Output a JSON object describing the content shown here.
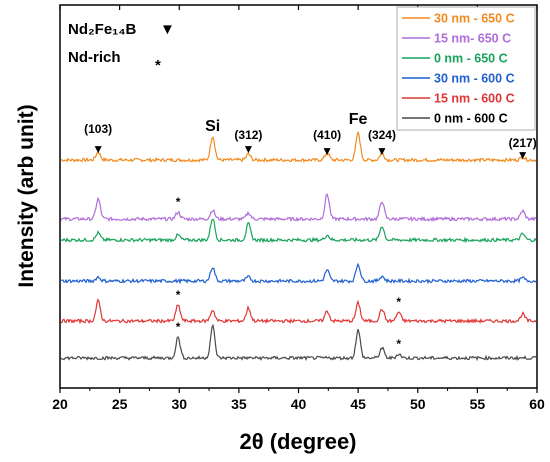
{
  "chart_data": {
    "type": "line",
    "xlabel": "2θ (degree)",
    "ylabel": "Intensity (arb unit)",
    "xlim": [
      20,
      60
    ],
    "xticks": [
      20,
      25,
      30,
      35,
      40,
      45,
      50,
      55,
      60
    ],
    "legend_placement": "top-right",
    "phase_key": [
      {
        "label": "Nd₂Fe₁₄B",
        "symbol": "▼"
      },
      {
        "label": "Nd-rich",
        "symbol": "*"
      }
    ],
    "series": [
      {
        "name": "30 nm - 650 C",
        "color": "#F28A1F",
        "peaks": [
          [
            23.2,
            8
          ],
          [
            32.8,
            24
          ],
          [
            35.8,
            6
          ],
          [
            42.4,
            7
          ],
          [
            45.0,
            27
          ],
          [
            47.0,
            7
          ],
          [
            58.8,
            3
          ]
        ]
      },
      {
        "name": "15 nm- 650 C",
        "color": "#B06CD8",
        "peaks": [
          [
            23.2,
            20
          ],
          [
            29.9,
            7
          ],
          [
            32.8,
            9
          ],
          [
            35.8,
            6
          ],
          [
            42.4,
            25
          ],
          [
            47.0,
            18
          ],
          [
            58.8,
            8
          ]
        ]
      },
      {
        "name": "0 nm - 650 C",
        "color": "#17A35A",
        "peaks": [
          [
            23.2,
            7
          ],
          [
            29.9,
            5
          ],
          [
            32.8,
            22
          ],
          [
            35.8,
            16
          ],
          [
            42.4,
            5
          ],
          [
            47.0,
            14
          ],
          [
            58.8,
            6
          ]
        ]
      },
      {
        "name": "30 nm - 600 C",
        "color": "#1F5FD1",
        "peaks": [
          [
            23.2,
            4
          ],
          [
            32.8,
            14
          ],
          [
            35.8,
            4
          ],
          [
            42.4,
            11
          ],
          [
            45.0,
            17
          ],
          [
            47.0,
            5
          ],
          [
            58.8,
            3
          ]
        ]
      },
      {
        "name": "15 nm - 600 C",
        "color": "#E03535",
        "peaks": [
          [
            23.2,
            20
          ],
          [
            29.9,
            16
          ],
          [
            32.8,
            11
          ],
          [
            35.8,
            13
          ],
          [
            42.4,
            10
          ],
          [
            45.0,
            18
          ],
          [
            47.0,
            12
          ],
          [
            48.4,
            9
          ],
          [
            58.8,
            7
          ]
        ]
      },
      {
        "name": "0 nm  - 600 C",
        "color": "#4A4A4A",
        "peaks": [
          [
            29.9,
            21
          ],
          [
            32.8,
            32
          ],
          [
            45.0,
            28
          ],
          [
            47.0,
            10
          ],
          [
            48.4,
            4
          ]
        ]
      }
    ],
    "annotations": [
      {
        "text": "(103)",
        "x": 23.2,
        "marker": "▼"
      },
      {
        "text": "Si",
        "x": 32.8,
        "marker": ""
      },
      {
        "text": "(312)",
        "x": 35.8,
        "marker": "▼"
      },
      {
        "text": "(410)",
        "x": 42.4,
        "marker": "▼"
      },
      {
        "text": "Fe",
        "x": 45.0,
        "marker": ""
      },
      {
        "text": "(324)",
        "x": 47.0,
        "marker": "▼"
      },
      {
        "text": "(217)",
        "x": 58.8,
        "marker": "▼"
      }
    ],
    "asterisks": [
      {
        "text": "*",
        "x": 29.9,
        "series": 1
      },
      {
        "text": "*",
        "x": 29.9,
        "series": 4
      },
      {
        "text": "*",
        "x": 48.4,
        "series": 4
      },
      {
        "text": "*",
        "x": 29.9,
        "series": 5
      },
      {
        "text": "*",
        "x": 48.4,
        "series": 5
      }
    ]
  }
}
